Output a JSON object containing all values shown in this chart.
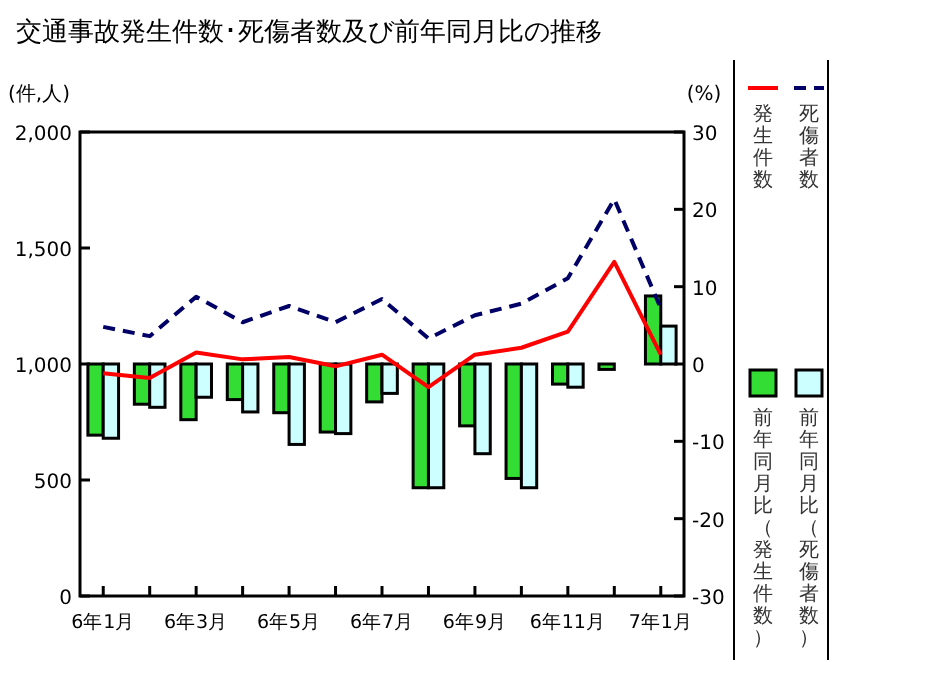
{
  "chart_data": {
    "type": "bar",
    "title": "交通事故発生件数･死傷者数及び前年同月比の推移",
    "ylabel": "(件,人)",
    "y2label": "(%)",
    "categories": [
      "6年1月",
      null,
      "6年3月",
      null,
      "6年5月",
      null,
      "6年7月",
      null,
      "6年9月",
      null,
      "6年11月",
      null,
      "7年1月"
    ],
    "series": [
      {
        "name": "発生件数",
        "type": "line",
        "color": "#ff0000",
        "line_style": "solid",
        "values": [
          960,
          940,
          1050,
          1020,
          1030,
          990,
          1040,
          900,
          1040,
          1070,
          1140,
          1440,
          1040
        ]
      },
      {
        "name": "死傷者数",
        "type": "line",
        "color": "#000066",
        "line_style": "dashed",
        "values": [
          1160,
          1120,
          1290,
          1180,
          1250,
          1180,
          1280,
          1110,
          1210,
          1260,
          1370,
          1710,
          1240
        ]
      },
      {
        "name": "前年同月比（発生件数）",
        "axis": "y2",
        "color": "#33dd33",
        "values": [
          -9.2,
          -5.2,
          -7.2,
          -4.6,
          -6.3,
          -8.8,
          -4.9,
          -16,
          -8,
          -14.8,
          -2.6,
          -0.7,
          8.8
        ]
      },
      {
        "name": "前年同月比（死傷者数）",
        "axis": "y2",
        "color": "#ccffff",
        "values": [
          -9.6,
          -5.6,
          -4.3,
          -6.2,
          -10.4,
          -9,
          -3.8,
          -16,
          -11.6,
          -16,
          -3,
          null,
          4.9
        ]
      }
    ],
    "ylim": [
      0,
      2000
    ],
    "yticks": [
      0,
      500,
      {
        "value": 1000,
        "label": "1,000"
      },
      {
        "value": 1500,
        "label": "1,500"
      },
      {
        "value": 2000,
        "label": "2,000"
      }
    ],
    "y2lim": [
      -30,
      30
    ],
    "y2ticks": [
      -30,
      -20,
      -10,
      0,
      10,
      20,
      30
    ],
    "legend": "right",
    "grid": false
  }
}
